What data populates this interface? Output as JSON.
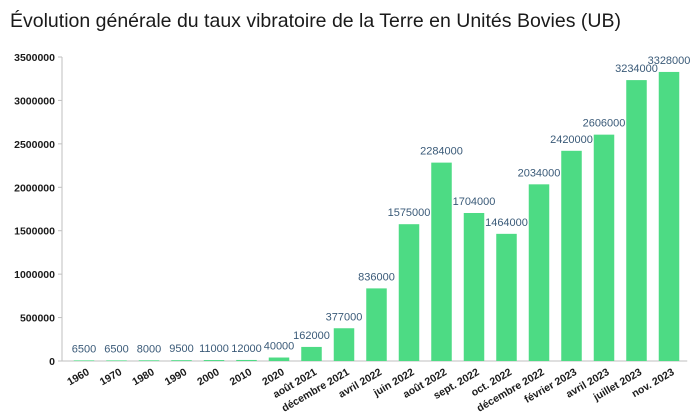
{
  "chart_data": {
    "type": "bar",
    "title": "Évolution générale du taux vibratoire de la Terre en Unités Bovies (UB)",
    "xlabel": "",
    "ylabel": "",
    "ylim": [
      0,
      3500000
    ],
    "yticks": [
      "0",
      "500000",
      "1000000",
      "1500000",
      "2000000",
      "2500000",
      "3000000",
      "3500000"
    ],
    "grid": false,
    "legend": "none",
    "bar_color": "#4ddb84",
    "label_color": "#3a5a78",
    "categories": [
      "1960",
      "1970",
      "1980",
      "1990",
      "2000",
      "2010",
      "2020",
      "août 2021",
      "décembre 2021",
      "avril 2022",
      "juin 2022",
      "août 2022",
      "sept. 2022",
      "oct. 2022",
      "décembre 2022",
      "février 2023",
      "avril 2023",
      "juillet 2023",
      "nov. 2023"
    ],
    "values": [
      6500,
      6500,
      8000,
      9500,
      11000,
      12000,
      40000,
      162000,
      377000,
      836000,
      1575000,
      2284000,
      1704000,
      1464000,
      2034000,
      2420000,
      2606000,
      3234000,
      3328000
    ],
    "value_labels": [
      "6500",
      "6500",
      "8000",
      "9500",
      "11000",
      "12000",
      "40000",
      "162000",
      "377000",
      "836000",
      "1575000",
      "2284000",
      "1704000",
      "1464000",
      "2034000",
      "2420000",
      "2606000",
      "3234000",
      "3328000"
    ]
  }
}
